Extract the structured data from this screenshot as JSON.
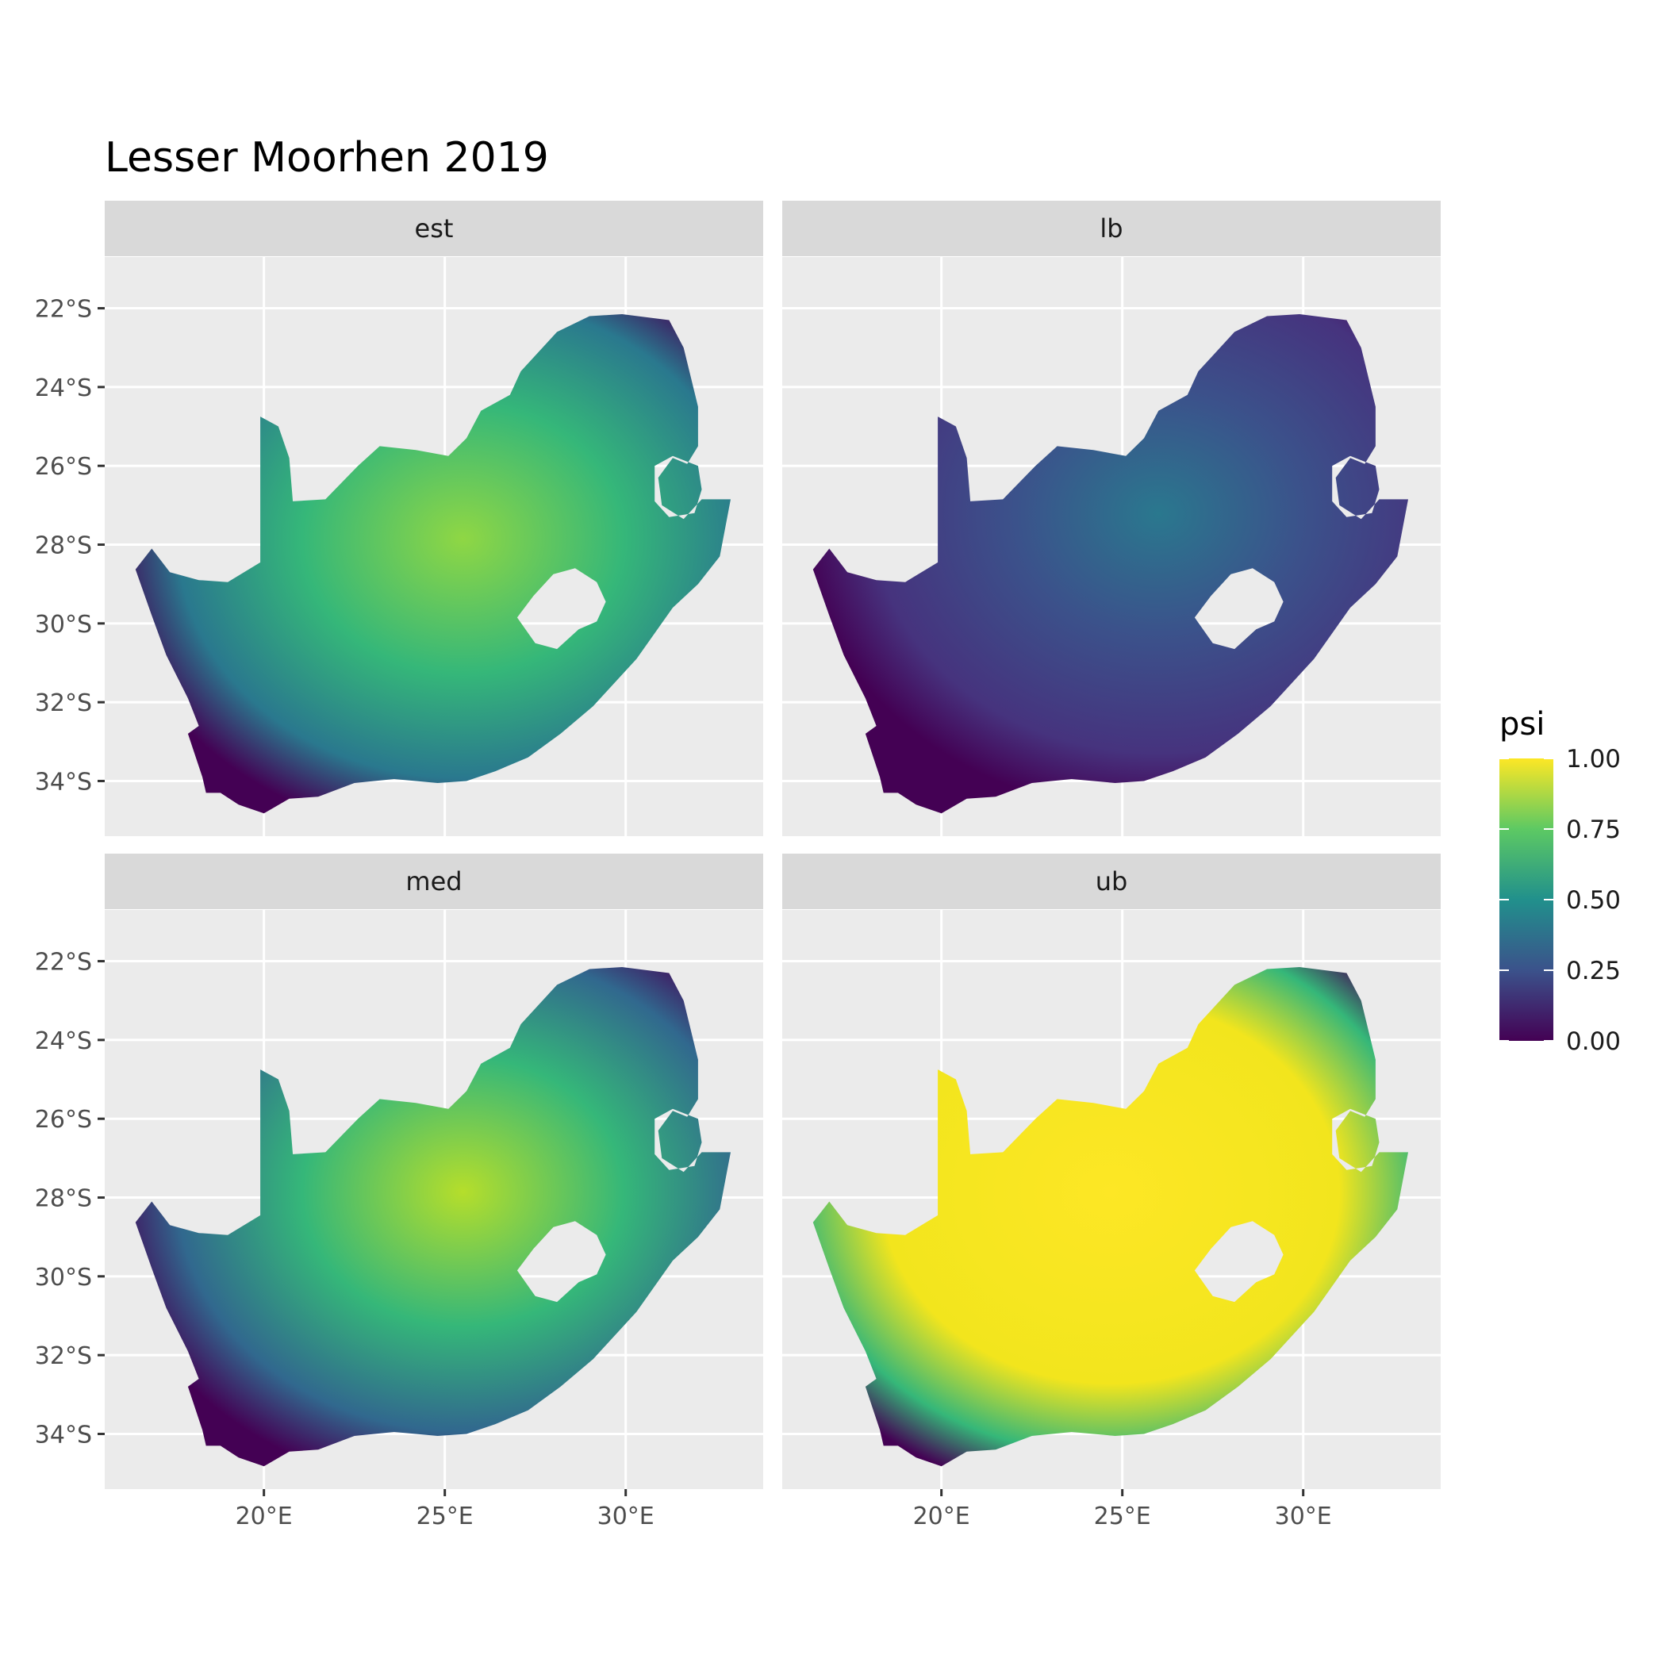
{
  "title": "Lesser Moorhen 2019",
  "panels": [
    {
      "label": "est",
      "mode": "est"
    },
    {
      "label": "lb",
      "mode": "lb"
    },
    {
      "label": "med",
      "mode": "med"
    },
    {
      "label": "ub",
      "mode": "ub"
    }
  ],
  "x_ticks": [
    {
      "value": 20,
      "label": "20°E"
    },
    {
      "value": 25,
      "label": "25°E"
    },
    {
      "value": 30,
      "label": "30°E"
    }
  ],
  "y_ticks": [
    {
      "value": -22,
      "label": "22°S"
    },
    {
      "value": -24,
      "label": "24°S"
    },
    {
      "value": -26,
      "label": "26°S"
    },
    {
      "value": -28,
      "label": "28°S"
    },
    {
      "value": -30,
      "label": "30°S"
    },
    {
      "value": -32,
      "label": "32°S"
    },
    {
      "value": -34,
      "label": "34°S"
    }
  ],
  "x_range": [
    15.6,
    33.8
  ],
  "y_range": [
    -35.4,
    -20.7
  ],
  "legend": {
    "title": "psi",
    "ticks": [
      "1.00",
      "0.75",
      "0.50",
      "0.25",
      "0.00"
    ],
    "tick_values": [
      1.0,
      0.75,
      0.5,
      0.25,
      0.0
    ],
    "colormap": "viridis",
    "stops": [
      "#440154",
      "#3b528b",
      "#21908c",
      "#5dc963",
      "#fde725"
    ]
  },
  "colors": {
    "panel_bg": "#ebebeb",
    "grid": "#ffffff",
    "strip_bg": "#d9d9d9",
    "text": "#1a1a1a",
    "axis_text": "#4d4d4d",
    "country_fill": "#440154"
  }
}
